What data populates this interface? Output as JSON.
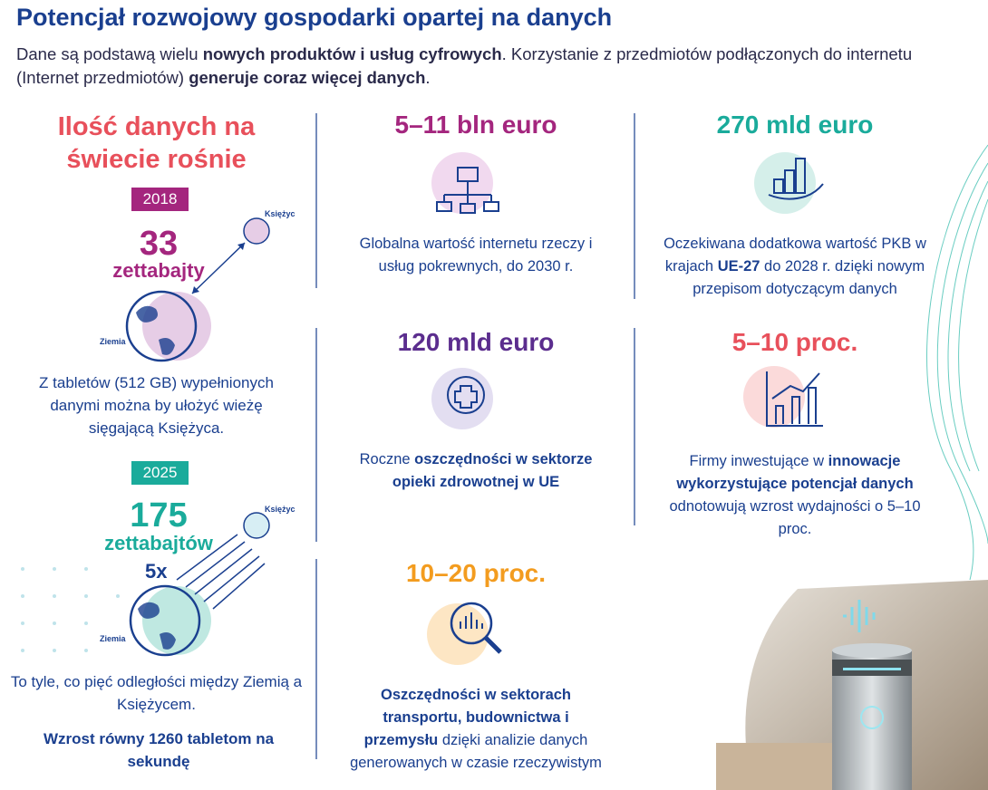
{
  "header": {
    "title": "Potencjał rozwojowy gospodarki opartej na danych",
    "intro": [
      {
        "text": "Dane są podstawą wielu ",
        "bold": false
      },
      {
        "text": "nowych produktów i usług cyfrowych",
        "bold": true
      },
      {
        "text": ". Korzystanie z przedmiotów podłączonych do internetu (Internet przedmiotów) ",
        "bold": false
      },
      {
        "text": "generuje coraz więcej danych",
        "bold": true
      },
      {
        "text": ".",
        "bold": false
      }
    ]
  },
  "left": {
    "title": "Ilość danych na świecie rośnie",
    "periods": [
      {
        "year": "2018",
        "amount": "33",
        "unit": "zettabajty",
        "moon_label": "Księżyc",
        "earth_label": "Ziemia",
        "color": "#a4267e",
        "caption": "Z tabletów (512 GB) wypełnionych danymi można by ułożyć wieżę sięgającą Księżyca."
      },
      {
        "year": "2025",
        "amount": "175",
        "unit": "zettabajtów",
        "multiplier": "5x",
        "moon_label": "Księżyc",
        "earth_label": "Ziemia",
        "color": "#1aab9b",
        "caption": "To tyle, co pięć odległości między Ziemią a Księżycem.",
        "note": "Wzrost równy 1260 tabletom na sekundę"
      }
    ]
  },
  "cards": [
    {
      "value": "5–11 bln euro",
      "color": "#a4267e",
      "text": [
        {
          "text": "Globalna wartość internetu rzeczy i usług pokrewnych, do 2030 r.",
          "bold": false
        }
      ]
    },
    {
      "value": "270 mld euro",
      "color": "#1aab9b",
      "text": [
        {
          "text": "Oczekiwana dodatkowa wartość PKB w krajach ",
          "bold": false
        },
        {
          "text": "UE-27",
          "bold": true
        },
        {
          "text": " do 2028 r. dzięki nowym przepisom dotyczącym danych",
          "bold": false
        }
      ]
    },
    {
      "value": "120 mld euro",
      "color": "#5b2d8e",
      "text": [
        {
          "text": "Roczne ",
          "bold": false
        },
        {
          "text": "oszczędności w sektorze opieki zdrowotnej w UE",
          "bold": true
        }
      ]
    },
    {
      "value": "5–10 proc.",
      "color": "#e8505b",
      "text": [
        {
          "text": "Firmy inwestujące w ",
          "bold": false
        },
        {
          "text": "innowacje wykorzystujące potencjał danych",
          "bold": true
        },
        {
          "text": " odnotowują wzrost wydajności o 5–10 proc.",
          "bold": false
        }
      ]
    },
    {
      "value": "10–20 proc.",
      "color": "#f39c1f",
      "text": [
        {
          "text": "Oszczędności w sektorach transportu, budownictwa i przemysłu",
          "bold": true
        },
        {
          "text": " dzięki analizie danych generowanych w czasie rzeczywistym",
          "bold": false
        }
      ]
    }
  ]
}
